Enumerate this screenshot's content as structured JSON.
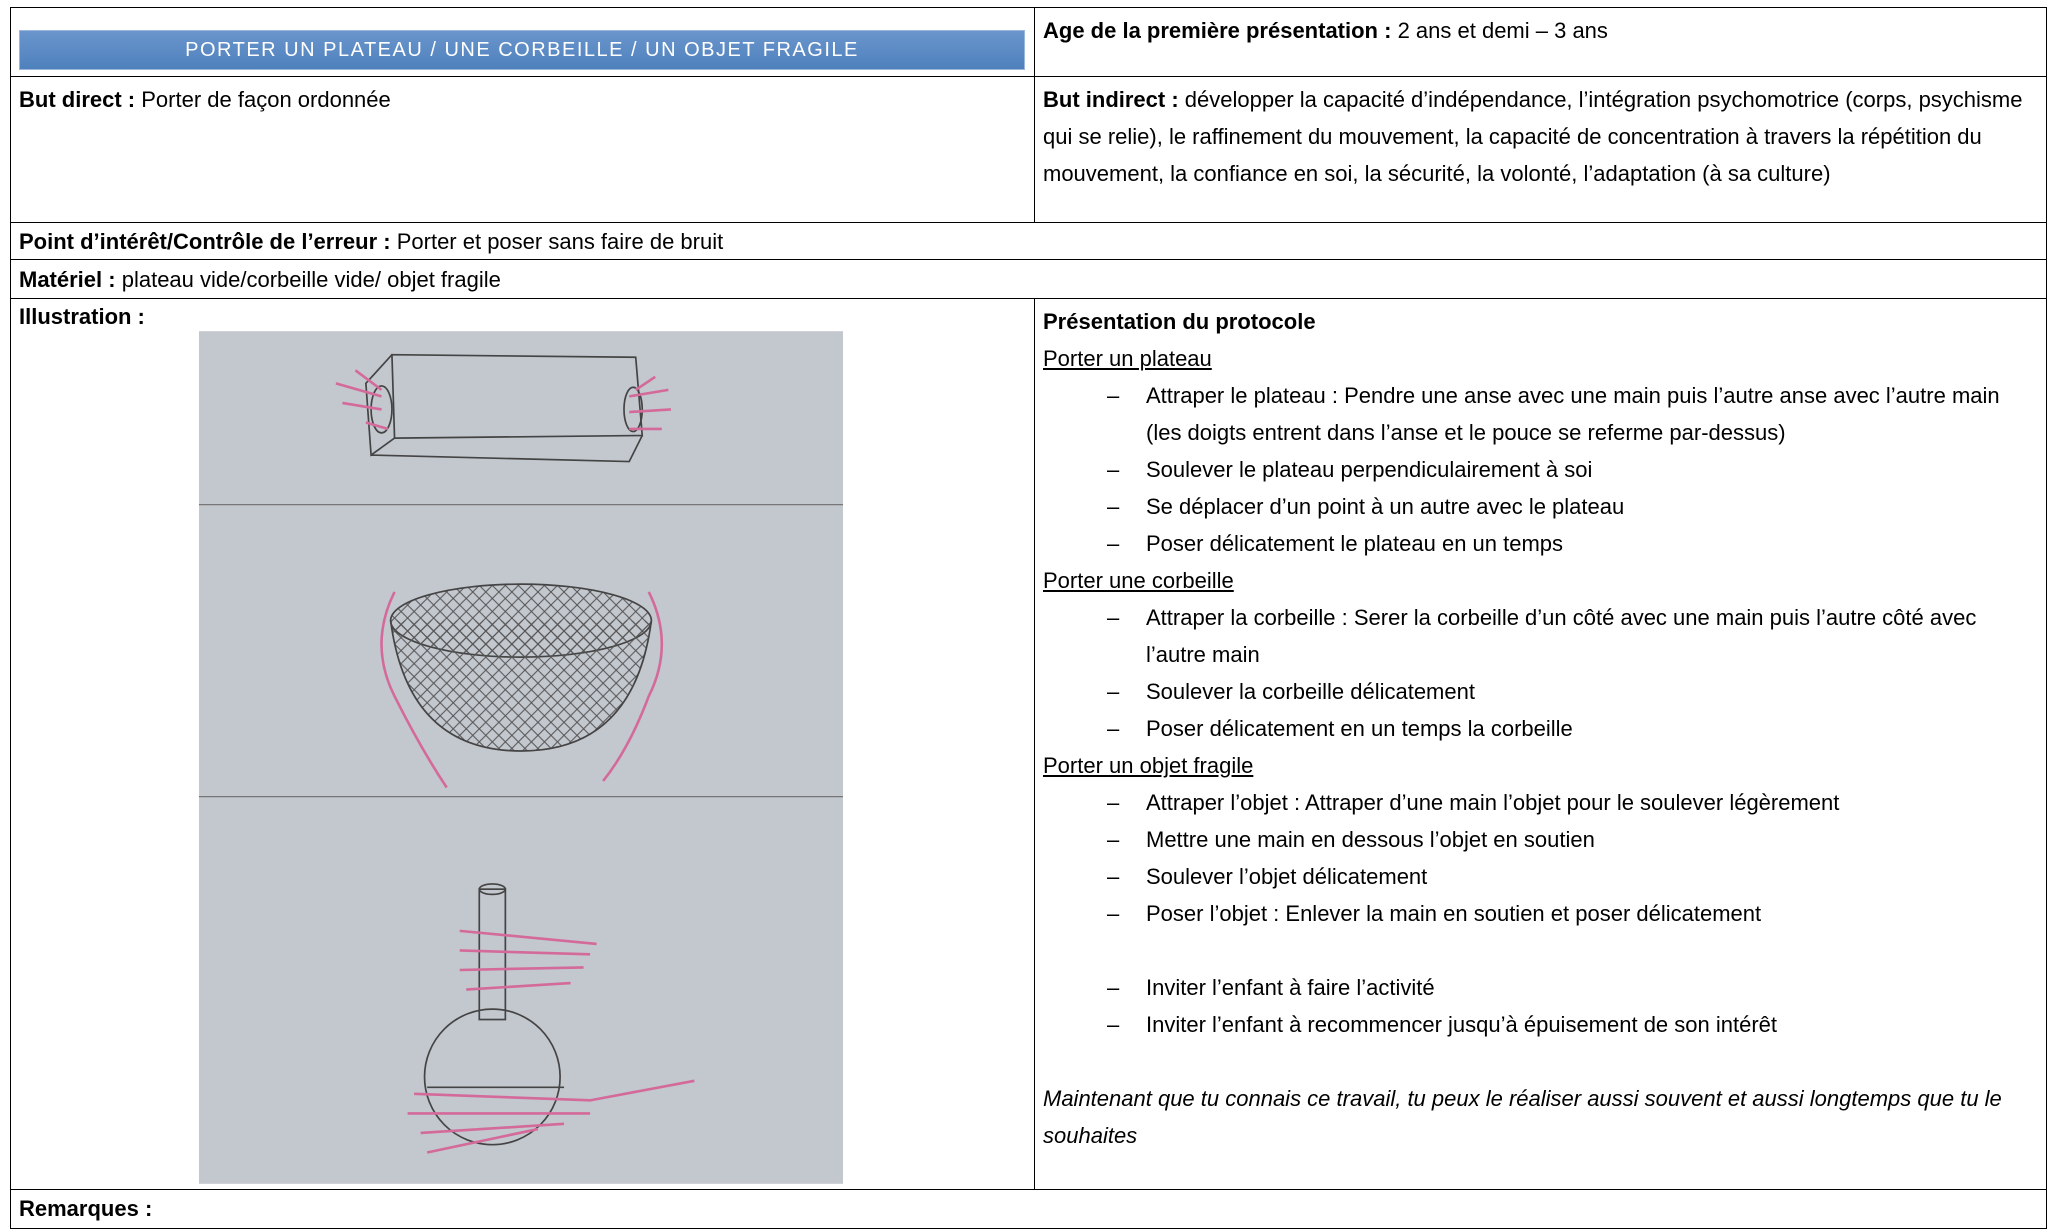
{
  "header": {
    "title": "PORTER UN PLATEAU / UNE CORBEILLE / UN OBJET FRAGILE",
    "age_label": "Age de la première présentation :",
    "age": "2 ans et demi – 3 ans"
  },
  "but_direct": {
    "label": "But direct :",
    "text": "Porter de façon ordonnée"
  },
  "but_indirect": {
    "label": "But indirect :",
    "text": "développer la capacité d’indépendance, l’intégration psychomotrice (corps, psychisme qui se relie), le raffinement du mouvement, la capacité de concentration à travers la répétition du mouvement, la confiance en soi, la sécurité, la volonté, l’adaptation (à sa culture)"
  },
  "point_interet": {
    "label": "Point d’intérêt/Contrôle de l’erreur :",
    "text": "Porter et poser sans faire de bruit"
  },
  "materiel": {
    "label": "Matériel :",
    "text": "plateau vide/corbeille vide/ objet fragile"
  },
  "illustration": {
    "label": "Illustration :"
  },
  "protocole": {
    "title": "Présentation du protocole",
    "sections": [
      {
        "title": "Porter un plateau",
        "steps": [
          "Attraper le plateau : Pendre une anse avec une main puis l’autre anse avec l’autre main  (les doigts entrent dans l’anse et le pouce se referme par-dessus)",
          "Soulever le plateau perpendiculairement à soi",
          "Se déplacer d’un point à un autre avec le plateau",
          "Poser délicatement le plateau en un temps"
        ]
      },
      {
        "title": "Porter une corbeille",
        "steps": [
          "Attraper la corbeille : Serer la corbeille d’un côté avec une main puis l’autre côté avec l’autre main",
          "Soulever la corbeille délicatement",
          "Poser délicatement en un temps la corbeille"
        ]
      },
      {
        "title": "Porter un objet fragile",
        "steps": [
          "Attraper l’objet : Attraper d’une main l’objet pour le soulever légèrement",
          "Mettre une main en dessous l’objet en soutien",
          "Soulever l’objet délicatement",
          "Poser l’objet : Enlever la main en soutien et poser délicatement"
        ]
      }
    ],
    "final_steps": [
      "Inviter l’enfant à faire l’activité",
      "Inviter l’enfant à recommencer jusqu’à épuisement de son intérêt"
    ],
    "closing": "Maintenant que tu connais ce travail, tu peux le réaliser aussi souvent et aussi longtemps que tu le souhaites"
  },
  "remarques": {
    "label": "Remarques :"
  }
}
